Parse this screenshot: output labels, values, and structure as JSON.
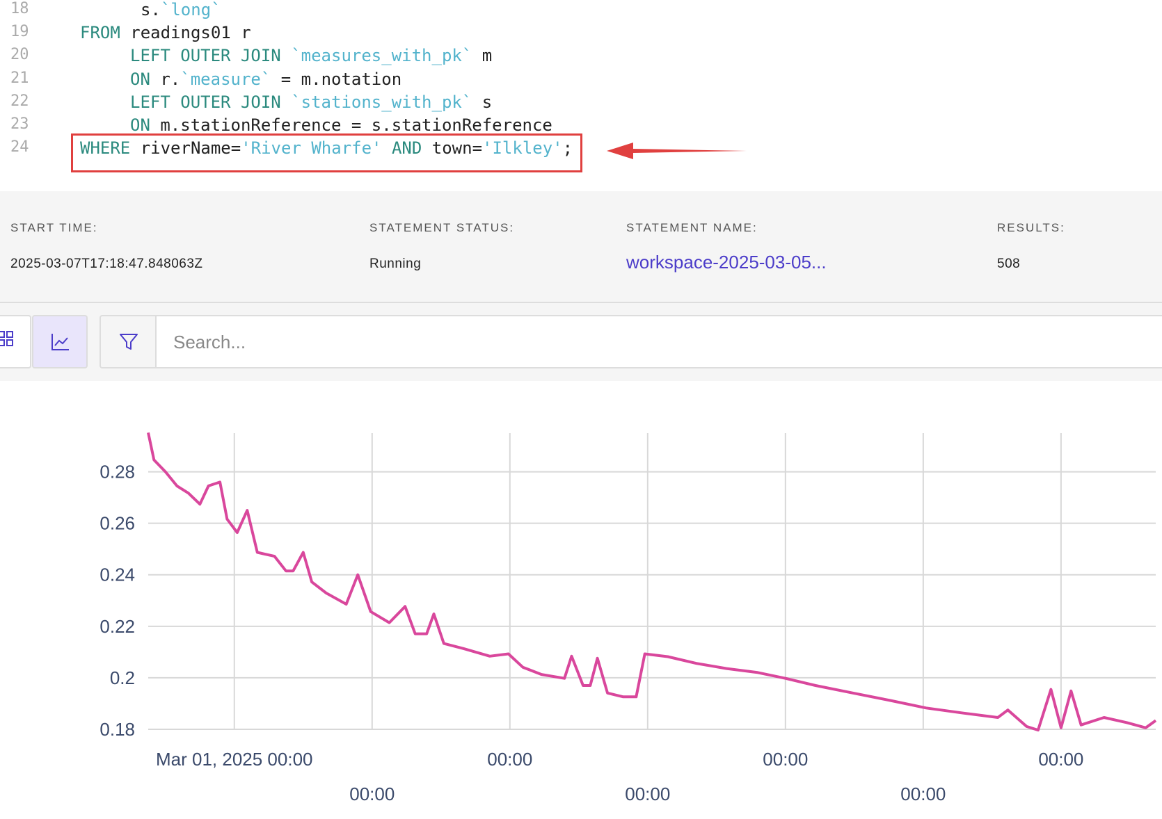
{
  "editor": {
    "lines": [
      {
        "number": "18",
        "tokens": [
          "s.",
          "`long`"
        ]
      },
      {
        "number": "19",
        "tokens": [
          "FROM",
          "readings01 r"
        ]
      },
      {
        "number": "20",
        "tokens": [
          "LEFT OUTER JOIN",
          "`measures_with_pk`",
          "m"
        ]
      },
      {
        "number": "21",
        "tokens": [
          "ON",
          "r.",
          "`measure`",
          "= m.notation"
        ]
      },
      {
        "number": "22",
        "tokens": [
          "LEFT OUTER JOIN",
          "`stations_with_pk`",
          "s"
        ]
      },
      {
        "number": "23",
        "tokens": [
          "ON",
          "m.stationReference = s.stationReference"
        ]
      },
      {
        "number": "24",
        "tokens": [
          "WHERE",
          "riverName=",
          "'River Wharfe'",
          "AND",
          "town=",
          "'Ilkley'",
          ";"
        ]
      }
    ]
  },
  "status": {
    "start_time": {
      "label": "START TIME:",
      "value": "2025-03-07T17:18:47.848063Z"
    },
    "statement_status": {
      "label": "STATEMENT STATUS:",
      "value": "Running"
    },
    "statement_name": {
      "label": "STATEMENT NAME:",
      "value": "workspace-2025-03-05..."
    },
    "results": {
      "label": "RESULTS:",
      "value": "508"
    }
  },
  "toolbar": {
    "search_placeholder": "Search..."
  },
  "chart_data": {
    "type": "line",
    "color": "#d9479c",
    "x": [
      "2025-02-28T09:00",
      "2025-02-28T10:00",
      "2025-02-28T12:00",
      "2025-02-28T14:00",
      "2025-02-28T16:00",
      "2025-02-28T18:00",
      "2025-02-28T19:30",
      "2025-02-28T21:30",
      "2025-02-28T22:45",
      "2025-03-01T00:30",
      "2025-03-01T02:15",
      "2025-03-01T04:00",
      "2025-03-01T07:00",
      "2025-03-01T09:00",
      "2025-03-01T10:15",
      "2025-03-01T12:00",
      "2025-03-01T13:30",
      "2025-03-01T16:00",
      "2025-03-01T19:30",
      "2025-03-01T21:30",
      "2025-03-01T23:45",
      "2025-03-02T03:00",
      "2025-03-02T05:45",
      "2025-03-02T07:30",
      "2025-03-02T09:30",
      "2025-03-02T10:45",
      "2025-03-02T12:30",
      "2025-03-02T16:00",
      "2025-03-02T20:30",
      "2025-03-02T23:45",
      "2025-03-03T02:15",
      "2025-03-03T05:30",
      "2025-03-03T09:30",
      "2025-03-03T10:45",
      "2025-03-03T12:45",
      "2025-03-03T14:00",
      "2025-03-03T15:15",
      "2025-03-03T17:00",
      "2025-03-03T19:45",
      "2025-03-03T22:00",
      "2025-03-03T23:30",
      "2025-03-04T03:30",
      "2025-03-04T08:30",
      "2025-03-04T13:45",
      "2025-03-04T19:00",
      "2025-03-05T00:00",
      "2025-03-05T05:15",
      "2025-03-05T11:45",
      "2025-03-05T18:15",
      "2025-03-06T00:30",
      "2025-03-06T07:00",
      "2025-03-06T13:00",
      "2025-03-06T14:45",
      "2025-03-06T18:00",
      "2025-03-06T20:00",
      "2025-03-06T22:15",
      "2025-03-07T00:00",
      "2025-03-07T01:45",
      "2025-03-07T03:30",
      "2025-03-07T07:30",
      "2025-03-07T11:30",
      "2025-03-07T14:45",
      "2025-03-07T16:30"
    ],
    "values": [
      0.2952,
      0.2846,
      0.28,
      0.2745,
      0.2717,
      0.2674,
      0.2745,
      0.276,
      0.2616,
      0.2564,
      0.265,
      0.2487,
      0.2472,
      0.2415,
      0.2415,
      0.2487,
      0.2372,
      0.2329,
      0.2286,
      0.24,
      0.2257,
      0.2214,
      0.2277,
      0.2171,
      0.2171,
      0.2248,
      0.2133,
      0.2113,
      0.2084,
      0.2093,
      0.2041,
      0.2013,
      0.1998,
      0.2084,
      0.197,
      0.197,
      0.2076,
      0.1941,
      0.1926,
      0.1926,
      0.2093,
      0.2082,
      0.2056,
      0.2036,
      0.2021,
      0.1998,
      0.197,
      0.1941,
      0.1912,
      0.1883,
      0.1863,
      0.1846,
      0.1875,
      0.1811,
      0.1797,
      0.1955,
      0.1806,
      0.1949,
      0.1817,
      0.1846,
      0.1826,
      0.1806,
      0.1834
    ],
    "xlim": [
      "2025-02-28T09:00",
      "2025-03-07T16:30"
    ],
    "xticks": [
      {
        "value": "2025-03-01T00:00",
        "label": "Mar 01, 2025 00:00"
      },
      {
        "value": "2025-03-02T00:00",
        "label": "00:00"
      },
      {
        "value": "2025-03-03T00:00",
        "label": "00:00"
      },
      {
        "value": "2025-03-04T00:00",
        "label": "00:00"
      },
      {
        "value": "2025-03-05T00:00",
        "label": "00:00"
      },
      {
        "value": "2025-03-06T00:00",
        "label": "00:00"
      },
      {
        "value": "2025-03-07T00:00",
        "label": "00:00"
      }
    ],
    "ylim": [
      0.18,
      0.295
    ],
    "yticks": [
      0.18,
      0.2,
      0.22,
      0.24,
      0.26,
      0.28
    ],
    "grid": true
  }
}
